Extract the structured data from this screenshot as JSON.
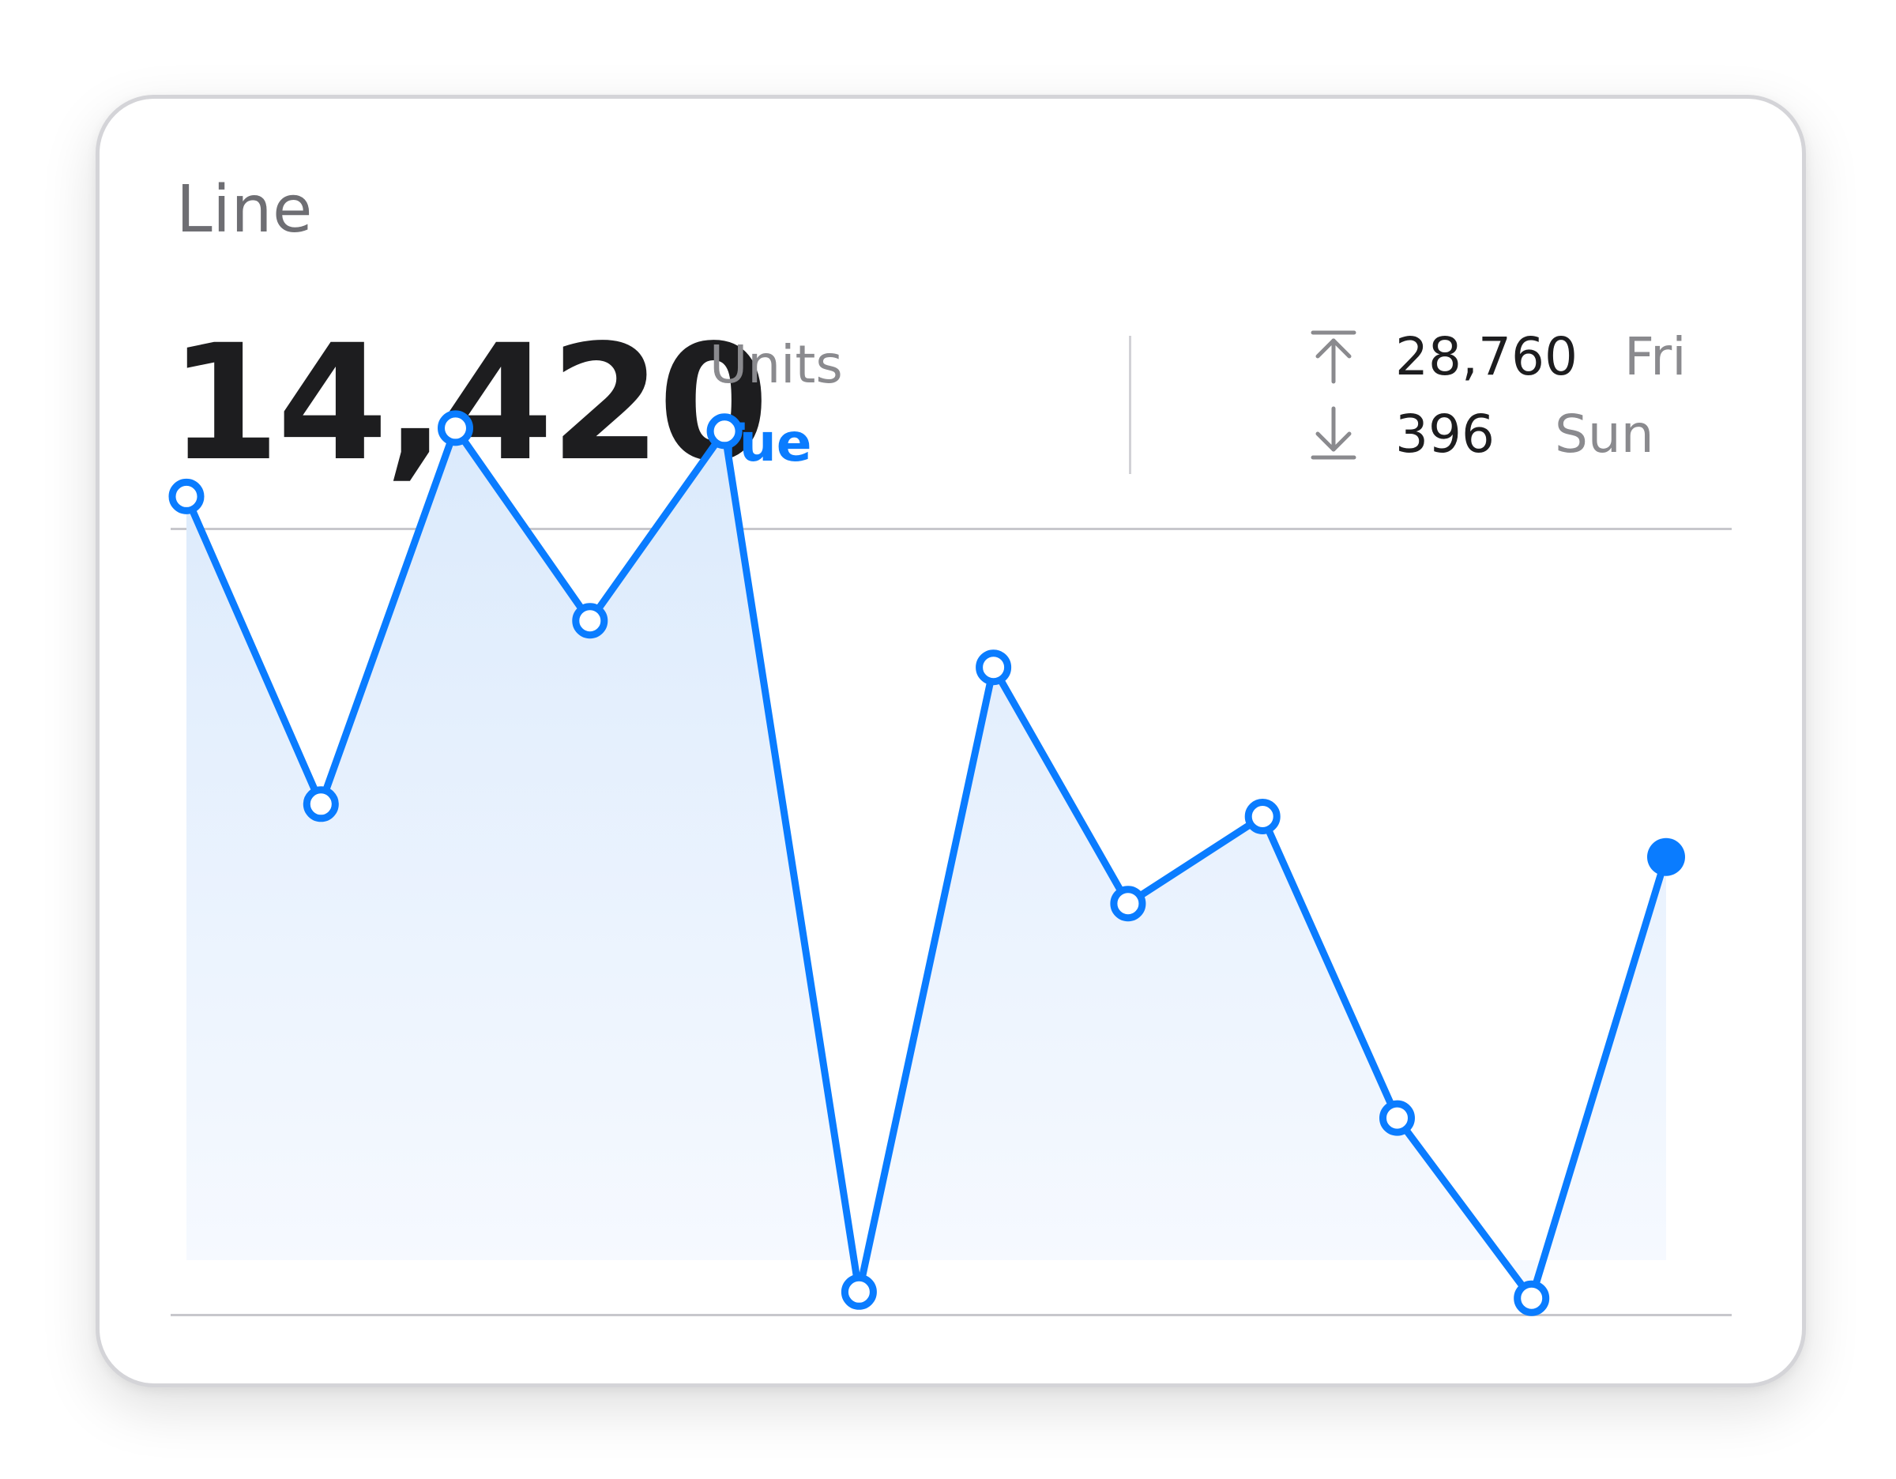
{
  "card": {
    "title": "Line",
    "current_value": "14,420",
    "unit": "Units",
    "current_day": "Tue",
    "max": {
      "value": "28,760",
      "day": "Fri"
    },
    "min": {
      "value": "396",
      "day": "Sun"
    }
  },
  "icons": {
    "max": "arrow-up-to-line-icon",
    "min": "arrow-down-to-line-icon"
  },
  "colors": {
    "accent": "#0a7cff",
    "title": "#6e6e73",
    "value": "#1d1d1f",
    "secondary": "#8a8a8e",
    "fill_top": "#dbeafc",
    "fill_bottom": "#f7faff"
  },
  "chart_data": {
    "type": "area",
    "title": "",
    "xlabel": "",
    "ylabel": "",
    "ylim": [
      0,
      30000
    ],
    "grid": false,
    "legend": "none",
    "x": [
      1,
      2,
      3,
      4,
      5,
      6,
      7,
      8,
      9,
      10,
      11,
      12
    ],
    "series": [
      {
        "values": [
          26100,
          16200,
          28300,
          22100,
          28200,
          500,
          20600,
          13000,
          15800,
          6100,
          300,
          14500
        ],
        "highlighted_index": 11
      }
    ]
  }
}
